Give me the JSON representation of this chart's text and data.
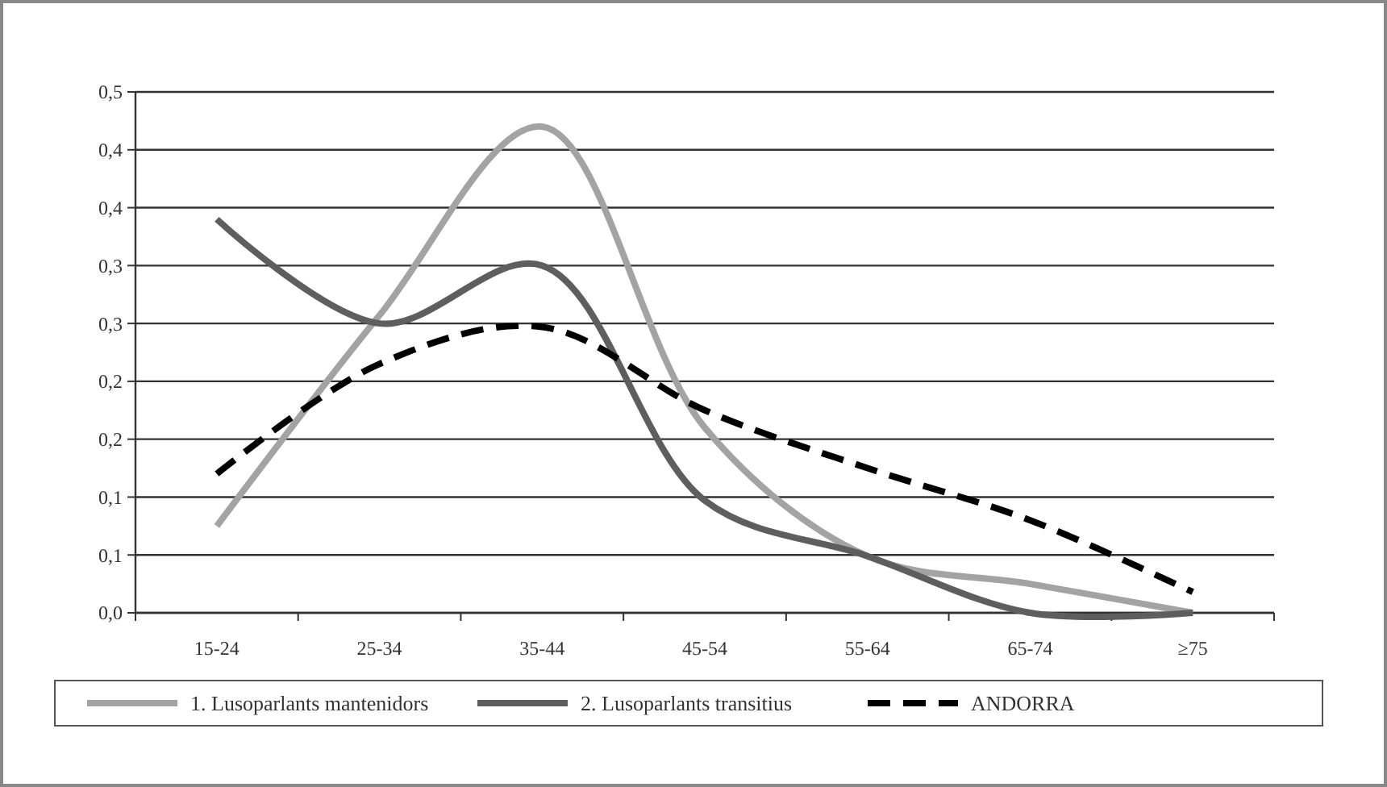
{
  "chart_data": {
    "type": "line",
    "categories": [
      "15-24",
      "25-34",
      "35-44",
      "45-54",
      "55-64",
      "65-74",
      "≥75"
    ],
    "series": [
      {
        "name": "1. Lusoparlants mantenidors",
        "color": "#a3a3a3",
        "values": [
          0.075,
          0.257,
          0.42,
          0.16,
          0.049,
          0.025,
          0
        ]
      },
      {
        "name": "2. Lusoparlants transitius",
        "color": "#5e5e5e",
        "values": [
          0.34,
          0.25,
          0.3,
          0.097,
          0.049,
          0,
          0
        ]
      },
      {
        "name": "ANDORRA",
        "color": "#000000",
        "values": [
          0.12,
          0.215,
          0.247,
          0.175,
          0.125,
          0.08,
          0.018
        ],
        "line_style": "dashed"
      }
    ],
    "ylim": [
      0,
      0.45
    ],
    "yticks": [
      {
        "value": 0,
        "label": "0,0"
      },
      {
        "value": 0.05,
        "label": "0,1"
      },
      {
        "value": 0.1,
        "label": "0,1"
      },
      {
        "value": 0.15,
        "label": "0,2"
      },
      {
        "value": 0.2,
        "label": "0,2"
      },
      {
        "value": 0.25,
        "label": "0,3"
      },
      {
        "value": 0.3,
        "label": "0,3"
      },
      {
        "value": 0.35,
        "label": "0,4"
      },
      {
        "value": 0.4,
        "label": "0,4"
      },
      {
        "value": 0.45,
        "label": "0,5"
      }
    ],
    "grid": "y",
    "legend": "bottom",
    "marker": "none"
  }
}
